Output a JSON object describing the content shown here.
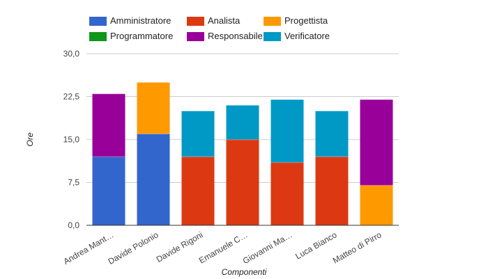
{
  "chart_data": {
    "type": "bar",
    "stacked": true,
    "title": "",
    "xlabel": "Componenti",
    "ylabel": "Ore",
    "ylim": [
      0,
      30
    ],
    "yticks": [
      0,
      7.5,
      15,
      22.5,
      30
    ],
    "ytick_labels": [
      "0,0",
      "7,5",
      "15,0",
      "22,5",
      "30,0"
    ],
    "grid": true,
    "legend_position": "top",
    "categories": [
      "Andrea Mant…",
      "Davide Polonio",
      "Davide Rigoni",
      "Emanuele C…",
      "Giovanni Ma…",
      "Luca Bianco",
      "Matteo di Pirro"
    ],
    "series": [
      {
        "name": "Amministratore",
        "color": "#3366cc",
        "values": [
          12,
          16,
          0,
          0,
          0,
          0,
          0
        ]
      },
      {
        "name": "Analista",
        "color": "#dc3912",
        "values": [
          0,
          0,
          12,
          15,
          11,
          12,
          0
        ]
      },
      {
        "name": "Progettista",
        "color": "#ff9900",
        "values": [
          0,
          9,
          0,
          0,
          0,
          0,
          7
        ]
      },
      {
        "name": "Programmatore",
        "color": "#109618",
        "values": [
          0,
          0,
          0,
          0,
          0,
          0,
          0
        ]
      },
      {
        "name": "Responsabile",
        "color": "#990099",
        "values": [
          11,
          0,
          0,
          0,
          0,
          0,
          15
        ]
      },
      {
        "name": "Verificatore",
        "color": "#0099c6",
        "values": [
          0,
          0,
          8,
          6,
          11,
          8,
          0
        ]
      }
    ]
  }
}
